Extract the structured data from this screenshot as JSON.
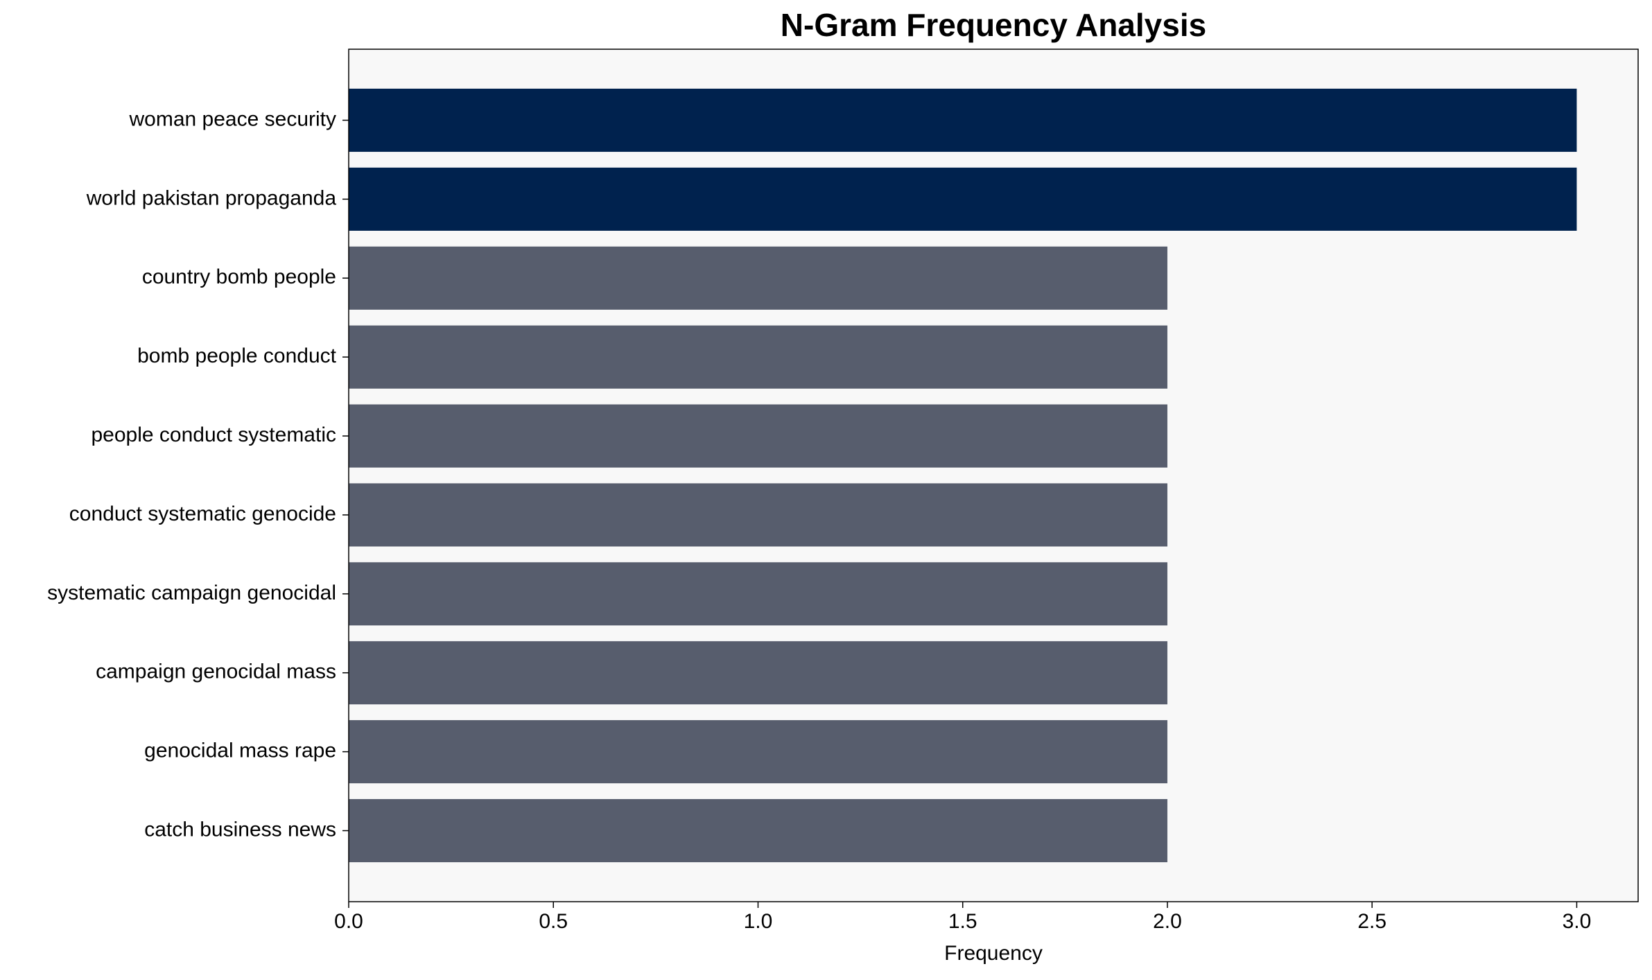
{
  "chart_data": {
    "type": "barh",
    "title": "N-Gram Frequency Analysis",
    "x_label": "Frequency",
    "categories": [
      "woman peace security",
      "world pakistan propaganda",
      "country bomb people",
      "bomb people conduct",
      "people conduct systematic",
      "conduct systematic genocide",
      "systematic campaign genocidal",
      "campaign genocidal mass",
      "genocidal mass rape",
      "catch business news"
    ],
    "values": [
      3,
      3,
      2,
      2,
      2,
      2,
      2,
      2,
      2,
      2
    ],
    "colors": [
      "#00224e",
      "#00224e",
      "#575d6d",
      "#575d6d",
      "#575d6d",
      "#575d6d",
      "#575d6d",
      "#575d6d",
      "#575d6d",
      "#575d6d"
    ],
    "xlim": [
      0,
      3.15
    ],
    "xticks": [
      {
        "value": 0,
        "label": "0.0"
      },
      0.5,
      {
        "value": 1,
        "label": "1.0"
      },
      1.5,
      {
        "value": 2,
        "label": "2.0"
      },
      2.5,
      {
        "value": 3,
        "label": "3.0"
      }
    ],
    "grid": false
  }
}
